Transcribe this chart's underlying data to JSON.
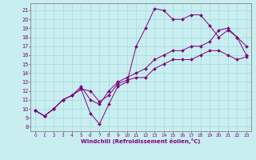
{
  "title": "",
  "xlabel": "Windchill (Refroidissement éolien,°C)",
  "ylabel": "",
  "bg_color": "#c8eef0",
  "line_color": "#800080",
  "grid_color": "#a8d8dc",
  "xlim": [
    -0.5,
    23.5
  ],
  "ylim": [
    7.5,
    21.8
  ],
  "yticks": [
    8,
    9,
    10,
    11,
    12,
    13,
    14,
    15,
    16,
    17,
    18,
    19,
    20,
    21
  ],
  "xticks": [
    0,
    1,
    2,
    3,
    4,
    5,
    6,
    7,
    8,
    9,
    10,
    11,
    12,
    13,
    14,
    15,
    16,
    17,
    18,
    19,
    20,
    21,
    22,
    23
  ],
  "lines": [
    {
      "x": [
        0,
        1,
        2,
        3,
        4,
        5,
        6,
        7,
        8,
        9,
        10,
        11,
        12,
        13,
        14,
        15,
        16,
        17,
        18,
        19,
        20,
        21,
        22,
        23
      ],
      "y": [
        9.8,
        9.2,
        10.0,
        11.0,
        11.5,
        12.2,
        9.5,
        8.3,
        10.5,
        12.5,
        13.0,
        17.0,
        19.0,
        21.2,
        21.0,
        20.0,
        20.0,
        20.5,
        20.5,
        19.3,
        18.0,
        18.8,
        18.0,
        16.0
      ]
    },
    {
      "x": [
        0,
        1,
        2,
        3,
        4,
        5,
        6,
        7,
        8,
        9,
        10,
        11,
        12,
        13,
        14,
        15,
        16,
        17,
        18,
        19,
        20,
        21,
        22,
        23
      ],
      "y": [
        9.8,
        9.2,
        10.0,
        11.0,
        11.5,
        12.5,
        11.0,
        10.5,
        12.0,
        13.0,
        13.5,
        14.0,
        14.5,
        15.5,
        16.0,
        16.5,
        16.5,
        17.0,
        17.0,
        17.5,
        18.8,
        19.0,
        18.0,
        17.0
      ]
    },
    {
      "x": [
        0,
        1,
        2,
        3,
        4,
        5,
        6,
        7,
        8,
        9,
        10,
        11,
        12,
        13,
        14,
        15,
        16,
        17,
        18,
        19,
        20,
        21,
        22,
        23
      ],
      "y": [
        9.8,
        9.2,
        10.0,
        11.0,
        11.5,
        12.2,
        12.0,
        10.8,
        11.5,
        12.8,
        13.2,
        13.5,
        13.5,
        14.5,
        15.0,
        15.5,
        15.5,
        15.5,
        16.0,
        16.5,
        16.5,
        16.0,
        15.5,
        15.8
      ]
    }
  ]
}
